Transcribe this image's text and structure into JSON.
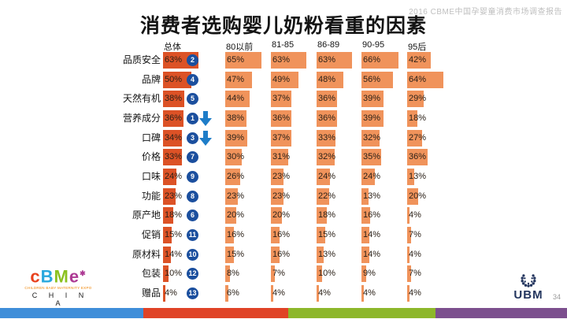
{
  "slide": {
    "watermark": "2016 CBME中国孕婴童消费市场调查报告",
    "title": "消费者选购婴儿奶粉看重的因素",
    "page_number": "34"
  },
  "chart_data": {
    "type": "bar",
    "orientation": "horizontal",
    "title": "消费者选购婴儿奶粉看重的因素",
    "unit": "%",
    "xlim": [
      0,
      70
    ],
    "categories": [
      "品质安全",
      "品牌",
      "天然有机",
      "营养成分",
      "口碑",
      "价格",
      "口味",
      "功能",
      "原产地",
      "促销",
      "原材料",
      "包装",
      "赠品"
    ],
    "rank_badges": [
      2,
      4,
      5,
      1,
      3,
      7,
      9,
      8,
      6,
      11,
      10,
      12,
      13
    ],
    "trend_down_rows": [
      3,
      4
    ],
    "series": [
      {
        "name": "总体",
        "values": [
          63,
          50,
          38,
          36,
          34,
          33,
          24,
          23,
          18,
          15,
          14,
          10,
          4
        ]
      },
      {
        "name": "80以前",
        "values": [
          65,
          47,
          44,
          38,
          39,
          30,
          26,
          23,
          20,
          16,
          15,
          8,
          6
        ]
      },
      {
        "name": "81-85",
        "values": [
          63,
          49,
          37,
          36,
          37,
          31,
          23,
          23,
          20,
          16,
          16,
          7,
          4
        ]
      },
      {
        "name": "86-89",
        "values": [
          63,
          48,
          36,
          36,
          33,
          32,
          24,
          22,
          18,
          15,
          13,
          10,
          4
        ]
      },
      {
        "name": "90-95",
        "values": [
          66,
          56,
          39,
          39,
          32,
          35,
          24,
          13,
          16,
          14,
          14,
          9,
          4
        ]
      },
      {
        "name": "95后",
        "values": [
          42,
          64,
          29,
          18,
          27,
          36,
          13,
          20,
          4,
          7,
          4,
          7,
          4
        ]
      }
    ],
    "colors": {
      "overall_bar": "#dc5226",
      "group_bar": "#f0935b",
      "rank_badge": "#1b4f9e",
      "trend_arrow": "#1e7dc8"
    }
  },
  "footer": {
    "cbme_logo": {
      "letters": [
        {
          "ch": "c",
          "color": "#e8401c"
        },
        {
          "ch": "B",
          "color": "#29a8dd"
        },
        {
          "ch": "M",
          "color": "#8cc11f"
        },
        {
          "ch": "e",
          "color": "#ad3a94"
        }
      ],
      "star": "✱",
      "tagline": "CHILDREN BABY MATERNITY EXPO",
      "country": "C H I N A"
    },
    "ubm_label": "UBM",
    "stripe_colors": [
      "#3f8ed9",
      "#e04326",
      "#8db72a",
      "#7c4f8e"
    ]
  }
}
